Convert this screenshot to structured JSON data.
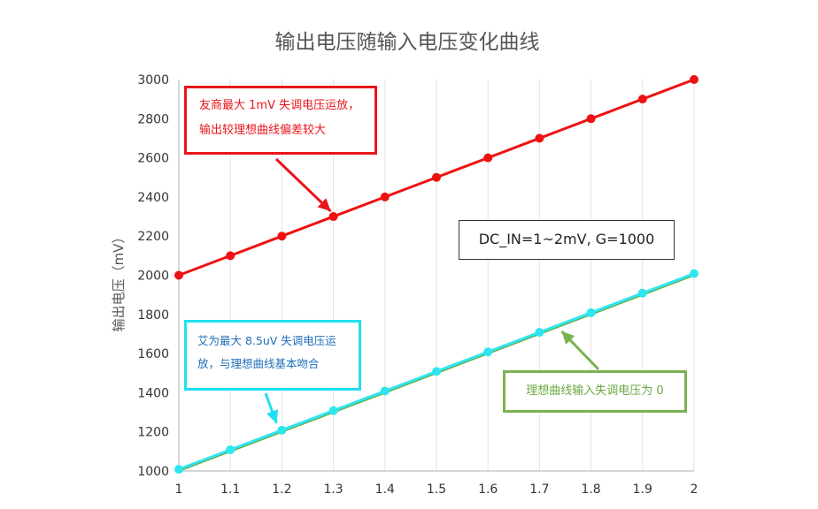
{
  "chart_data": {
    "type": "line",
    "title": "输出电压随输入电压变化曲线",
    "xlabel": "",
    "ylabel": "输出电压（mV）",
    "x": [
      1,
      1.1,
      1.2,
      1.3,
      1.4,
      1.5,
      1.6,
      1.7,
      1.8,
      1.9,
      2
    ],
    "x_tick_labels": [
      "1",
      "1.1",
      "1.2",
      "1.3",
      "1.4",
      "1.5",
      "1.6",
      "1.7",
      "1.8",
      "1.9",
      "2"
    ],
    "xlim": [
      1,
      2
    ],
    "ylim": [
      1000,
      3000
    ],
    "y_ticks": [
      1000,
      1200,
      1400,
      1600,
      1800,
      2000,
      2200,
      2400,
      2600,
      2800,
      3000
    ],
    "grid": "vertical",
    "series": [
      {
        "color": "#ee1111",
        "values": [
          2000,
          2100,
          2200,
          2300,
          2400,
          2500,
          2600,
          2700,
          2800,
          2900,
          3000
        ]
      },
      {
        "color": "#6aa843",
        "values": [
          1000,
          1100,
          1200,
          1300,
          1400,
          1500,
          1600,
          1700,
          1800,
          1900,
          2000
        ]
      },
      {
        "color": "#2ee6f0",
        "values": [
          1008.5,
          1108.5,
          1208.5,
          1308.5,
          1408.5,
          1508.5,
          1608.5,
          1708.5,
          1808.5,
          1908.5,
          2008.5
        ]
      }
    ],
    "annotations": {
      "red_line1": "友商最大 1mV 失调电压运放，",
      "red_line2": "输出较理想曲线偏差较大",
      "cyan_line1": "艾为最大 8.5uV 失调电压运",
      "cyan_line2": "放，与理想曲线基本吻合",
      "green_text": "理想曲线输入失调电压为 0",
      "dc_text": "DC_IN=1~2mV, G=1000"
    }
  }
}
